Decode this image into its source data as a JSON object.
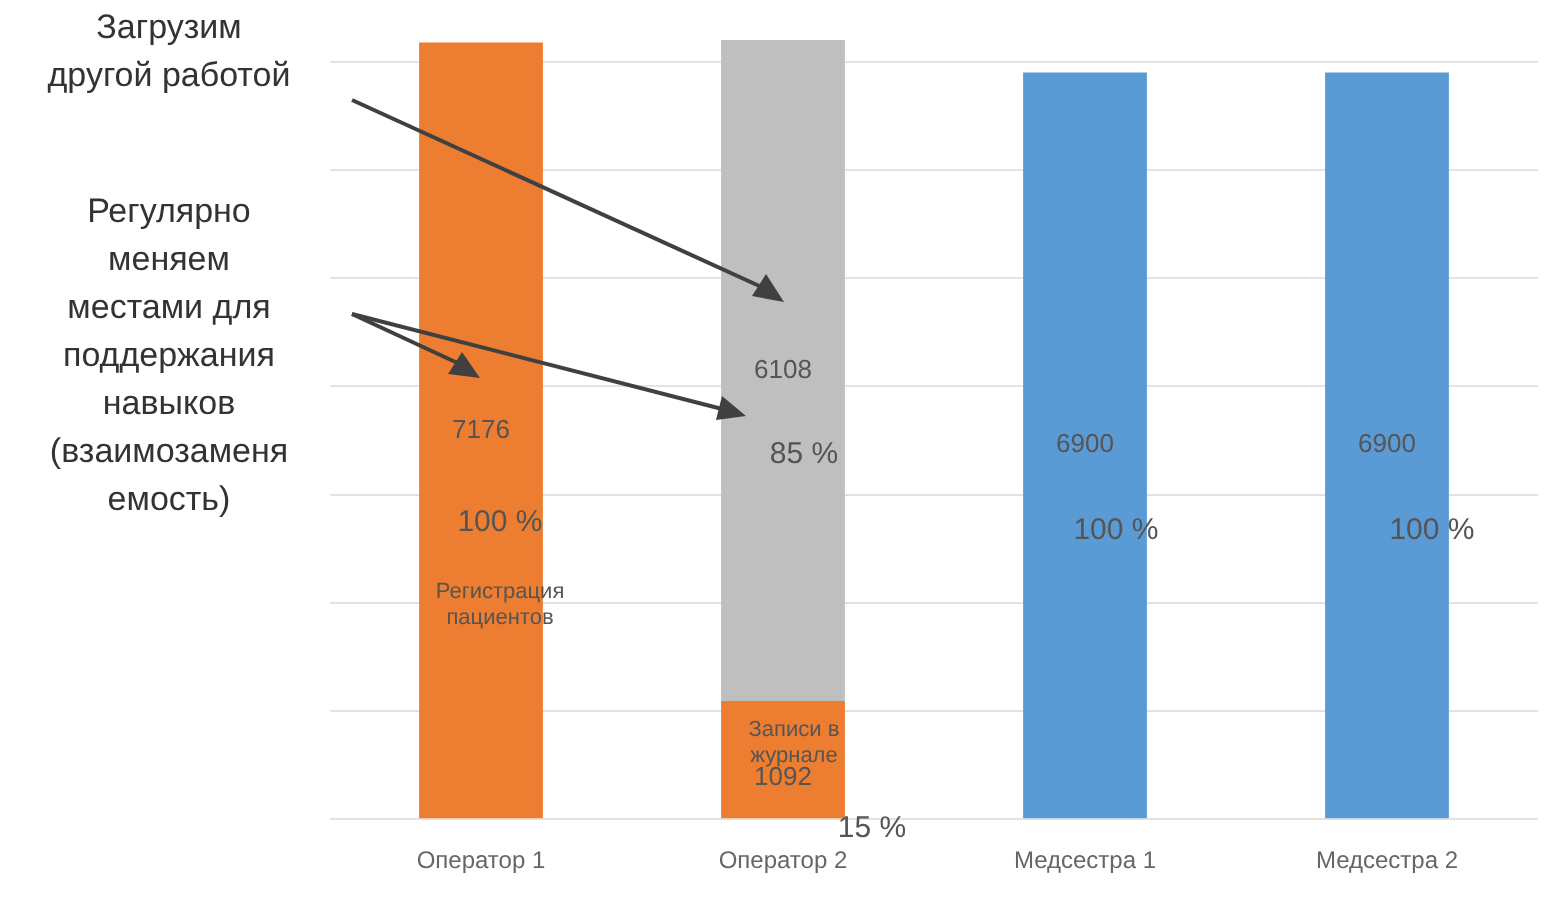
{
  "chart_data": {
    "type": "bar",
    "stacked": true,
    "categories": [
      "Оператор 1",
      "Оператор 2",
      "Медсестра 1",
      "Медсестра 2"
    ],
    "series": [
      {
        "color": "#ed7d31",
        "values": [
          7176,
          1092,
          null,
          null
        ]
      },
      {
        "color": "#bfbfbf",
        "values": [
          null,
          6108,
          null,
          null
        ]
      },
      {
        "color": "#5b9bd5",
        "values": [
          null,
          null,
          6900,
          6900
        ]
      }
    ],
    "ylim": [
      0,
      7200
    ],
    "yticks": [
      {
        "value": 0,
        "label": null
      },
      {
        "value": 1000,
        "label": null
      },
      {
        "value": 2000,
        "label": null
      },
      {
        "value": 3000,
        "label": null
      },
      {
        "value": 4000,
        "label": null
      },
      {
        "value": 5000,
        "label": null
      },
      {
        "value": 6000,
        "label": null
      },
      {
        "value": 7000,
        "label": null
      }
    ],
    "tick_labels": "x",
    "grid": "y",
    "legend": false,
    "data_labels": true,
    "annotations": [
      "Загрузим другой работой",
      "Регулярно меняем местами для поддержания навыков (взаимозаменяемость)",
      "100 %",
      "Регистрация пациентов",
      "85 %",
      "Записи в журнале",
      "15 %",
      "100 %",
      "100 %"
    ]
  }
}
